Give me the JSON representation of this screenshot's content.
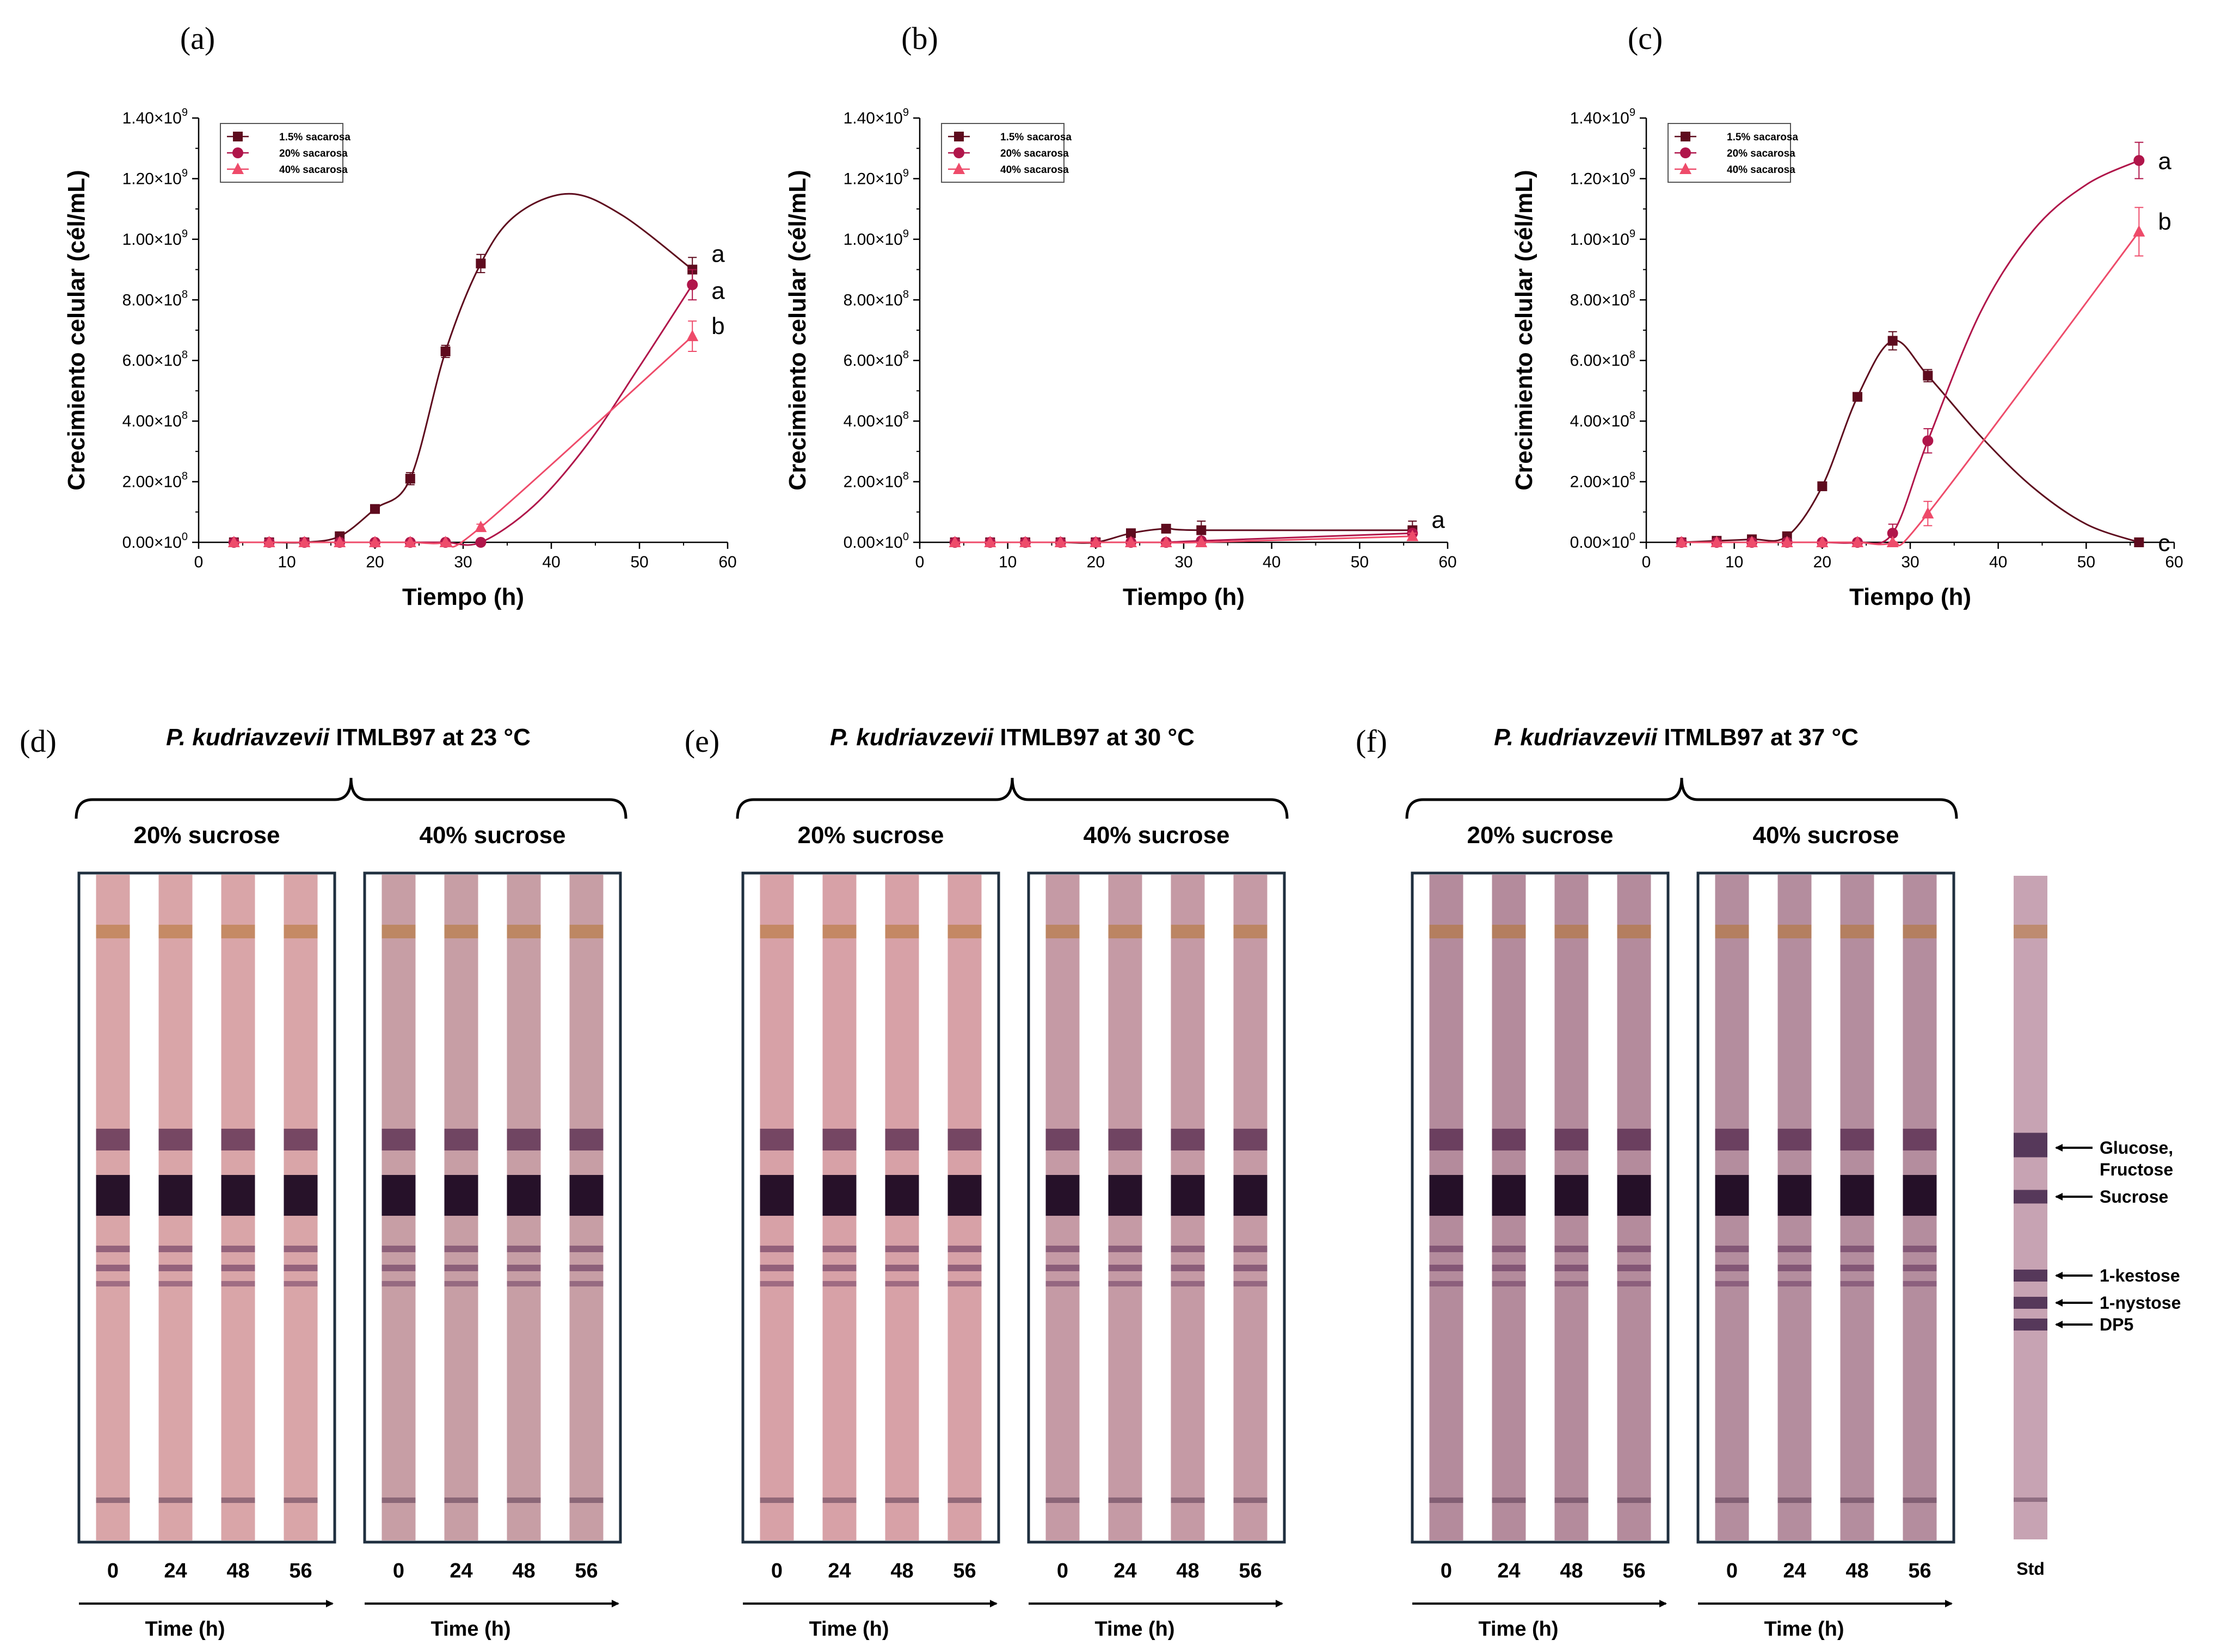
{
  "chart_data": [
    {
      "type": "line",
      "panel": "(a)",
      "xlabel": "Tiempo (h)",
      "ylabel": "Crecimiento celular (cél/mL)",
      "xlim": [
        0,
        60
      ],
      "ylim": [
        0,
        1400000000.0
      ],
      "xticks": [
        "0",
        "10",
        "20",
        "30",
        "40",
        "50",
        "60"
      ],
      "yticks": [
        {
          "mant": "0.00×10",
          "exp": "0",
          "value": 0
        },
        {
          "mant": "2.00×10",
          "exp": "8",
          "value": 200000000.0
        },
        {
          "mant": "4.00×10",
          "exp": "8",
          "value": 400000000.0
        },
        {
          "mant": "6.00×10",
          "exp": "8",
          "value": 600000000.0
        },
        {
          "mant": "8.00×10",
          "exp": "8",
          "value": 800000000.0
        },
        {
          "mant": "1.00×10",
          "exp": "9",
          "value": 1000000000.0
        },
        {
          "mant": "1.20×10",
          "exp": "9",
          "value": 1200000000.0
        },
        {
          "mant": "1.40×10",
          "exp": "9",
          "value": 1400000000.0
        }
      ],
      "legend": "top-left",
      "series": [
        {
          "name": "1.5% sacarosa",
          "marker": "square",
          "color": "#5e0b1e",
          "x": [
            4,
            8,
            12,
            16,
            20,
            24,
            28,
            32,
            56
          ],
          "y": [
            0,
            0,
            0,
            20000000.0,
            110000000.0,
            210000000.0,
            630000000.0,
            920000000.0,
            900000000.0
          ],
          "err": [
            0,
            0,
            0,
            0,
            10000000.0,
            20000000.0,
            20000000.0,
            30000000.0,
            40000000.0
          ],
          "curve_x": [
            4,
            8,
            12,
            16,
            20,
            24,
            28,
            32,
            36,
            42,
            48,
            56
          ],
          "curve_y": [
            0,
            0,
            0,
            20000000.0,
            110000000.0,
            210000000.0,
            630000000.0,
            920000000.0,
            1080000000.0,
            1150000000.0,
            1080000000.0,
            900000000.0
          ],
          "sig": "a"
        },
        {
          "name": "20% sacarosa",
          "marker": "circle",
          "color": "#b0154a",
          "x": [
            4,
            8,
            12,
            16,
            20,
            24,
            28,
            32,
            56
          ],
          "y": [
            0,
            0,
            0,
            0,
            0,
            0,
            0,
            0,
            850000000.0
          ],
          "err": [
            0,
            0,
            0,
            0,
            0,
            0,
            0,
            0,
            50000000.0
          ],
          "curve_x": [
            4,
            8,
            12,
            16,
            20,
            24,
            28,
            32,
            38,
            44,
            50,
            56
          ],
          "curve_y": [
            0,
            0,
            0,
            0,
            0,
            0,
            0,
            0,
            120000000.0,
            320000000.0,
            580000000.0,
            850000000.0
          ],
          "sig": "a"
        },
        {
          "name": "40% sacarosa",
          "marker": "triangle",
          "color": "#ee4b6a",
          "x": [
            4,
            8,
            12,
            16,
            20,
            24,
            28,
            32,
            56
          ],
          "y": [
            0,
            0,
            0,
            0,
            0,
            0,
            0,
            50000000.0,
            680000000.0
          ],
          "err": [
            0,
            0,
            0,
            0,
            0,
            0,
            0,
            10000000.0,
            50000000.0
          ],
          "curve_x": [
            4,
            8,
            12,
            16,
            20,
            24,
            28,
            32,
            56
          ],
          "curve_y": [
            0,
            0,
            0,
            0,
            0,
            0,
            0,
            50000000.0,
            680000000.0
          ],
          "sig": "b"
        }
      ]
    },
    {
      "type": "line",
      "panel": "(b)",
      "xlabel": "Tiempo (h)",
      "ylabel": "Crecimiento celular (cél/mL)",
      "xlim": [
        0,
        60
      ],
      "ylim": [
        0,
        1400000000.0
      ],
      "xticks": [
        "0",
        "10",
        "20",
        "30",
        "40",
        "50",
        "60"
      ],
      "yticks": [
        {
          "mant": "0.00×10",
          "exp": "0",
          "value": 0
        },
        {
          "mant": "2.00×10",
          "exp": "8",
          "value": 200000000.0
        },
        {
          "mant": "4.00×10",
          "exp": "8",
          "value": 400000000.0
        },
        {
          "mant": "6.00×10",
          "exp": "8",
          "value": 600000000.0
        },
        {
          "mant": "8.00×10",
          "exp": "8",
          "value": 800000000.0
        },
        {
          "mant": "1.00×10",
          "exp": "9",
          "value": 1000000000.0
        },
        {
          "mant": "1.20×10",
          "exp": "9",
          "value": 1200000000.0
        },
        {
          "mant": "1.40×10",
          "exp": "9",
          "value": 1400000000.0
        }
      ],
      "legend": "top-left",
      "series": [
        {
          "name": "1.5% sacarosa",
          "marker": "square",
          "color": "#5e0b1e",
          "x": [
            4,
            8,
            12,
            16,
            20,
            24,
            28,
            32,
            56
          ],
          "y": [
            0,
            0,
            0,
            0,
            0,
            30000000.0,
            45000000.0,
            40000000.0,
            40000000.0
          ],
          "err": [
            0,
            0,
            0,
            0,
            0,
            0,
            5000000.0,
            30000000.0,
            30000000.0
          ],
          "curve_x": [
            4,
            8,
            12,
            16,
            20,
            24,
            28,
            32,
            56
          ],
          "curve_y": [
            0,
            0,
            0,
            0,
            0,
            30000000.0,
            45000000.0,
            40000000.0,
            40000000.0
          ],
          "sig": "a"
        },
        {
          "name": "20% sacarosa",
          "marker": "circle",
          "color": "#b0154a",
          "x": [
            4,
            8,
            12,
            16,
            20,
            24,
            28,
            32,
            56
          ],
          "y": [
            0,
            0,
            0,
            0,
            0,
            0,
            0,
            5000000.0,
            30000000.0
          ],
          "err": [
            0,
            0,
            0,
            0,
            0,
            0,
            0,
            0,
            10000000.0
          ],
          "curve_x": [
            4,
            8,
            12,
            16,
            20,
            24,
            28,
            32,
            56
          ],
          "curve_y": [
            0,
            0,
            0,
            0,
            0,
            0,
            0,
            5000000.0,
            30000000.0
          ],
          "sig": ""
        },
        {
          "name": "40% sacarosa",
          "marker": "triangle",
          "color": "#ee4b6a",
          "x": [
            4,
            8,
            12,
            16,
            20,
            24,
            28,
            32,
            56
          ],
          "y": [
            0,
            0,
            0,
            0,
            0,
            0,
            0,
            0,
            20000000.0
          ],
          "err": [
            0,
            0,
            0,
            0,
            0,
            0,
            0,
            0,
            10000000.0
          ],
          "curve_x": [
            4,
            8,
            12,
            16,
            20,
            24,
            28,
            32,
            56
          ],
          "curve_y": [
            0,
            0,
            0,
            0,
            0,
            0,
            0,
            0,
            20000000.0
          ],
          "sig": ""
        }
      ]
    },
    {
      "type": "line",
      "panel": "(c)",
      "xlabel": "Tiempo (h)",
      "ylabel": "Crecimiento celular (cél/mL)",
      "xlim": [
        0,
        60
      ],
      "ylim": [
        0,
        1400000000.0
      ],
      "xticks": [
        "0",
        "10",
        "20",
        "30",
        "40",
        "50",
        "60"
      ],
      "yticks": [
        {
          "mant": "0.00×10",
          "exp": "0",
          "value": 0
        },
        {
          "mant": "2.00×10",
          "exp": "8",
          "value": 200000000.0
        },
        {
          "mant": "4.00×10",
          "exp": "8",
          "value": 400000000.0
        },
        {
          "mant": "6.00×10",
          "exp": "8",
          "value": 600000000.0
        },
        {
          "mant": "8.00×10",
          "exp": "8",
          "value": 800000000.0
        },
        {
          "mant": "1.00×10",
          "exp": "9",
          "value": 1000000000.0
        },
        {
          "mant": "1.20×10",
          "exp": "9",
          "value": 1200000000.0
        },
        {
          "mant": "1.40×10",
          "exp": "9",
          "value": 1400000000.0
        }
      ],
      "legend": "top-left",
      "series": [
        {
          "name": "1.5% sacarosa",
          "marker": "square",
          "color": "#5e0b1e",
          "x": [
            4,
            8,
            12,
            16,
            20,
            24,
            28,
            32,
            56
          ],
          "y": [
            0,
            5000000.0,
            10000000.0,
            20000000.0,
            185000000.0,
            480000000.0,
            665000000.0,
            550000000.0,
            0
          ],
          "err": [
            0,
            0,
            0,
            0,
            10000000.0,
            10000000.0,
            30000000.0,
            20000000.0,
            0
          ],
          "curve_x": [
            4,
            8,
            12,
            16,
            20,
            24,
            28,
            32,
            38,
            44,
            50,
            56
          ],
          "curve_y": [
            0,
            5000000.0,
            10000000.0,
            20000000.0,
            185000000.0,
            480000000.0,
            665000000.0,
            550000000.0,
            350000000.0,
            180000000.0,
            60000000.0,
            0
          ],
          "sig": "c"
        },
        {
          "name": "20% sacarosa",
          "marker": "circle",
          "color": "#b0154a",
          "x": [
            4,
            8,
            12,
            16,
            20,
            24,
            28,
            32,
            56
          ],
          "y": [
            0,
            0,
            0,
            0,
            0,
            0,
            30000000.0,
            335000000.0,
            1260000000.0
          ],
          "err": [
            0,
            0,
            0,
            0,
            0,
            0,
            30000000.0,
            40000000.0,
            60000000.0
          ],
          "curve_x": [
            4,
            8,
            12,
            16,
            20,
            24,
            28,
            32,
            38,
            44,
            50,
            56
          ],
          "curve_y": [
            0,
            0,
            0,
            0,
            0,
            0,
            30000000.0,
            335000000.0,
            760000000.0,
            1030000000.0,
            1180000000.0,
            1260000000.0
          ],
          "sig": "a"
        },
        {
          "name": "40% sacarosa",
          "marker": "triangle",
          "color": "#ee4b6a",
          "x": [
            4,
            8,
            12,
            16,
            20,
            24,
            28,
            32,
            56
          ],
          "y": [
            0,
            0,
            0,
            0,
            0,
            0,
            0,
            95000000.0,
            1025000000.0
          ],
          "err": [
            0,
            0,
            0,
            0,
            0,
            0,
            0,
            40000000.0,
            80000000.0
          ],
          "curve_x": [
            4,
            8,
            12,
            16,
            20,
            24,
            28,
            32,
            56
          ],
          "curve_y": [
            0,
            0,
            0,
            0,
            0,
            0,
            0,
            95000000.0,
            1025000000.0
          ],
          "sig": "b"
        }
      ]
    }
  ],
  "tlc": [
    {
      "panel": "(d)",
      "organism": "P. kudriavzevii",
      "title_rest": " ITMLB97 at 23 °C",
      "groups": [
        {
          "label": "20% sucrose",
          "lane_times": [
            "0",
            "24",
            "48",
            "56"
          ],
          "axis_label": "Time (h)",
          "bg": "#d9a5a8"
        },
        {
          "label": "40% sucrose",
          "lane_times": [
            "0",
            "24",
            "48",
            "56"
          ],
          "axis_label": "Time (h)",
          "bg": "#c79ea5"
        }
      ]
    },
    {
      "panel": "(e)",
      "organism": "P. kudriavzevii",
      "title_rest": " ITMLB97 at 30 °C",
      "groups": [
        {
          "label": "20% sucrose",
          "lane_times": [
            "0",
            "24",
            "48",
            "56"
          ],
          "axis_label": "Time (h)",
          "bg": "#d7a1a7"
        },
        {
          "label": "40% sucrose",
          "lane_times": [
            "0",
            "24",
            "48",
            "56"
          ],
          "axis_label": "Time (h)",
          "bg": "#c59aa5"
        }
      ]
    },
    {
      "panel": "(f)",
      "organism": "P. kudriavzevii",
      "title_rest": " ITMLB97 at 37 °C",
      "groups": [
        {
          "label": "20% sucrose",
          "lane_times": [
            "0",
            "24",
            "48",
            "56"
          ],
          "axis_label": "Time (h)",
          "bg": "#b48b9c"
        },
        {
          "label": "40% sucrose",
          "lane_times": [
            "0",
            "24",
            "48",
            "56"
          ],
          "axis_label": "Time (h)",
          "bg": "#b48d9e"
        }
      ]
    }
  ],
  "standard": {
    "label": "Std",
    "bands": [
      {
        "label": "Glucose,",
        "label2": "Fructose"
      },
      {
        "label": "Sucrose",
        "label2": ""
      },
      {
        "label": "1-kestose",
        "label2": ""
      },
      {
        "label": "1-nystose",
        "label2": ""
      },
      {
        "label": "DP5",
        "label2": ""
      }
    ]
  }
}
